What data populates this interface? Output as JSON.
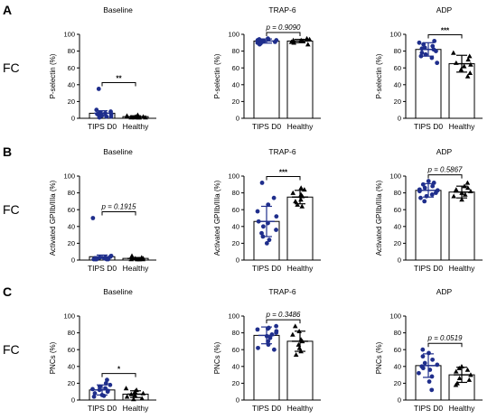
{
  "rows": [
    {
      "letter": "A",
      "method": "FC"
    },
    {
      "letter": "B",
      "method": "FC"
    },
    {
      "letter": "C",
      "method": "FC"
    }
  ],
  "colors": {
    "tips": "#1f2e8c",
    "healthy": "#000000"
  },
  "chart_data": [
    {
      "type": "bar",
      "row": 0,
      "col": 0,
      "title": "Baseline",
      "ylabel": "P-selectin (%)",
      "ylim": [
        0,
        100
      ],
      "yticks": [
        "0",
        "20",
        "40",
        "60",
        "80",
        "100"
      ],
      "categories": [
        "TIPS D0",
        "Healthy"
      ],
      "means": [
        6,
        2
      ],
      "sd": [
        3,
        1
      ],
      "points": [
        [
          35,
          10,
          8,
          7,
          6,
          5,
          5,
          4,
          3,
          3,
          2,
          2,
          1
        ],
        [
          4,
          3,
          2,
          2,
          1,
          1,
          1,
          1,
          1
        ]
      ],
      "significance": "**",
      "sig_type": "stars"
    },
    {
      "type": "bar",
      "row": 0,
      "col": 1,
      "title": "TRAP-6",
      "ylabel": "P-selectin (%)",
      "ylim": [
        0,
        100
      ],
      "yticks": [
        "0",
        "20",
        "40",
        "60",
        "80",
        "100"
      ],
      "categories": [
        "TIPS D0",
        "Healthy"
      ],
      "means": [
        92,
        92
      ],
      "sd": [
        2.5,
        2
      ],
      "points": [
        [
          95,
          94,
          94,
          93,
          93,
          92,
          92,
          92,
          91,
          91,
          90,
          89,
          88
        ],
        [
          95,
          94,
          93,
          93,
          92,
          92,
          91,
          90,
          88
        ]
      ],
      "significance": "p = 0.9090",
      "sig_type": "p"
    },
    {
      "type": "bar",
      "row": 0,
      "col": 2,
      "title": "ADP",
      "ylabel": "P-selectin (%)",
      "ylim": [
        0,
        100
      ],
      "yticks": [
        "0",
        "20",
        "40",
        "60",
        "80",
        "100"
      ],
      "categories": [
        "TIPS D0",
        "Healthy"
      ],
      "means": [
        82,
        65
      ],
      "sd": [
        8,
        10
      ],
      "points": [
        [
          92,
          90,
          88,
          86,
          84,
          83,
          82,
          80,
          78,
          76,
          74,
          72,
          66
        ],
        [
          78,
          74,
          70,
          66,
          64,
          62,
          58,
          54,
          50
        ]
      ],
      "significance": "***",
      "sig_type": "stars"
    },
    {
      "type": "bar",
      "row": 1,
      "col": 0,
      "title": "Baseline",
      "ylabel": "Activated GPIIb/IIIa (%)",
      "ylim": [
        0,
        100
      ],
      "yticks": [
        "0",
        "20",
        "40",
        "60",
        "80",
        "100"
      ],
      "categories": [
        "TIPS D0",
        "Healthy"
      ],
      "means": [
        4,
        2
      ],
      "sd": [
        2,
        1
      ],
      "points": [
        [
          50,
          5,
          4,
          3,
          3,
          2,
          2,
          2,
          1,
          1,
          1,
          1,
          1
        ],
        [
          5,
          3,
          2,
          2,
          1,
          1,
          1,
          1,
          1
        ]
      ],
      "significance": "p = 0.1915",
      "sig_type": "p"
    },
    {
      "type": "bar",
      "row": 1,
      "col": 1,
      "title": "TRAP-6",
      "ylabel": "Activated GPIIb/IIIa (%)",
      "ylim": [
        0,
        100
      ],
      "yticks": [
        "0",
        "20",
        "40",
        "60",
        "80",
        "100"
      ],
      "categories": [
        "TIPS D0",
        "Healthy"
      ],
      "means": [
        46,
        75
      ],
      "sd": [
        18,
        8
      ],
      "points": [
        [
          92,
          74,
          66,
          58,
          52,
          46,
          44,
          40,
          36,
          32,
          28,
          24,
          20
        ],
        [
          86,
          84,
          80,
          78,
          76,
          72,
          70,
          66,
          64
        ]
      ],
      "significance": "***",
      "sig_type": "stars"
    },
    {
      "type": "bar",
      "row": 1,
      "col": 2,
      "title": "ADP",
      "ylabel": "Activated GPIIb/IIIa (%)",
      "ylim": [
        0,
        100
      ],
      "yticks": [
        "0",
        "20",
        "40",
        "60",
        "80",
        "100"
      ],
      "categories": [
        "TIPS D0",
        "Healthy"
      ],
      "means": [
        83,
        81
      ],
      "sd": [
        8,
        7
      ],
      "points": [
        [
          94,
          92,
          90,
          88,
          86,
          84,
          83,
          82,
          80,
          78,
          76,
          74,
          70
        ],
        [
          92,
          88,
          86,
          84,
          82,
          80,
          78,
          76,
          72
        ]
      ],
      "significance": "p = 0.5867",
      "sig_type": "p"
    },
    {
      "type": "bar",
      "row": 2,
      "col": 0,
      "title": "Baseline",
      "ylabel": "PNCs (%)",
      "ylim": [
        0,
        100
      ],
      "yticks": [
        "0",
        "20",
        "40",
        "60",
        "80",
        "100"
      ],
      "categories": [
        "TIPS D0",
        "Healthy"
      ],
      "means": [
        12,
        7
      ],
      "sd": [
        6,
        4
      ],
      "points": [
        [
          24,
          20,
          18,
          16,
          14,
          13,
          12,
          11,
          10,
          8,
          6,
          5,
          4
        ],
        [
          14,
          12,
          10,
          8,
          7,
          6,
          4,
          2,
          1
        ]
      ],
      "significance": "*",
      "sig_type": "stars"
    },
    {
      "type": "bar",
      "row": 2,
      "col": 1,
      "title": "TRAP-6",
      "ylabel": "PNCs (%)",
      "ylim": [
        0,
        100
      ],
      "yticks": [
        "0",
        "20",
        "40",
        "60",
        "80",
        "100"
      ],
      "categories": [
        "TIPS D0",
        "Healthy"
      ],
      "means": [
        77,
        70
      ],
      "sd": [
        10,
        12
      ],
      "points": [
        [
          88,
          86,
          85,
          84,
          82,
          80,
          78,
          76,
          74,
          70,
          66,
          62,
          60
        ],
        [
          88,
          82,
          78,
          72,
          70,
          66,
          62,
          58,
          54
        ]
      ],
      "significance": "p = 0.3486",
      "sig_type": "p"
    },
    {
      "type": "bar",
      "row": 2,
      "col": 2,
      "title": "ADP",
      "ylabel": "PNCs (%)",
      "ylim": [
        0,
        100
      ],
      "yticks": [
        "0",
        "20",
        "40",
        "60",
        "80",
        "100"
      ],
      "categories": [
        "TIPS D0",
        "Healthy"
      ],
      "means": [
        41,
        30
      ],
      "sd": [
        14,
        9
      ],
      "points": [
        [
          60,
          56,
          52,
          48,
          44,
          42,
          40,
          38,
          36,
          32,
          28,
          22,
          12
        ],
        [
          40,
          38,
          36,
          34,
          30,
          26,
          24,
          20,
          18
        ]
      ],
      "significance": "p = 0.0519",
      "sig_type": "p"
    }
  ]
}
